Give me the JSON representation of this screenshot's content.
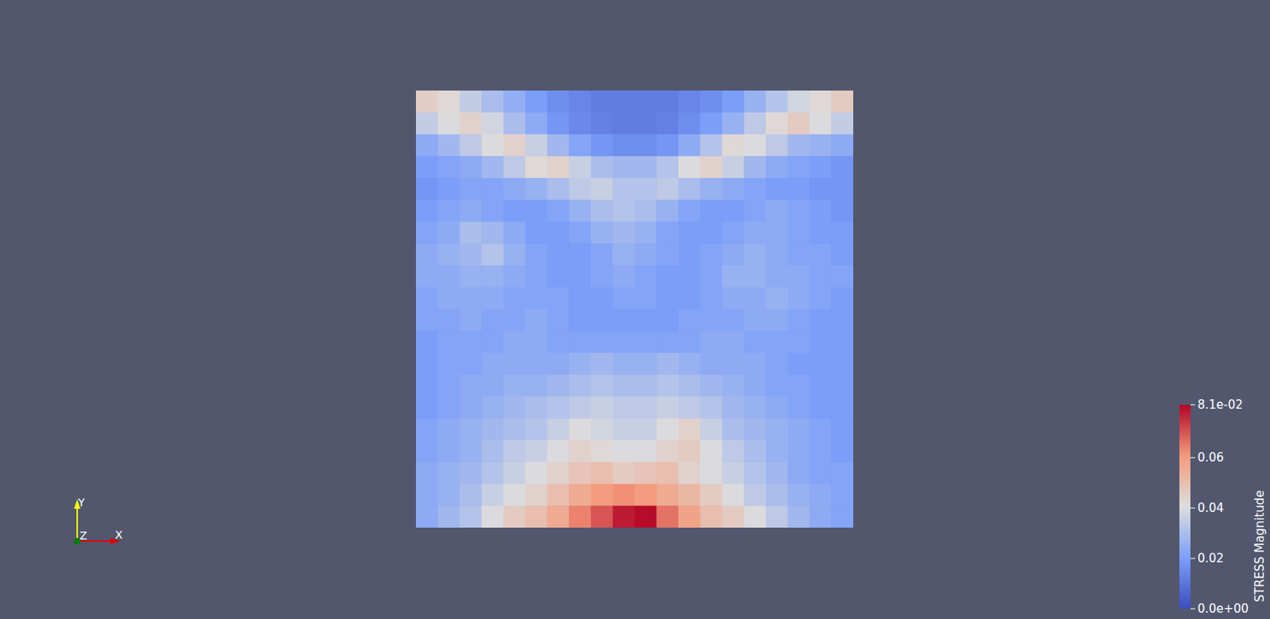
{
  "chart_data": {
    "type": "heatmap",
    "colorbar_title": "STRESS Magnitude",
    "color_range": [
      0,
      0.081
    ],
    "color_ticks": [
      {
        "value": 0,
        "label": "0.0e+00"
      },
      0.02,
      0.04,
      0.06,
      {
        "value": 0.081,
        "label": "8.1e-02"
      }
    ],
    "tick_labels": false,
    "x_label": "X",
    "y_label": "Y",
    "z_label": "Z",
    "cells": [
      [
        0.045,
        0.042,
        0.035,
        0.03,
        0.025,
        0.02,
        0.016,
        0.014,
        0.012,
        0.012,
        0.012,
        0.012,
        0.014,
        0.016,
        0.02,
        0.026,
        0.032,
        0.038,
        0.042,
        0.046
      ],
      [
        0.035,
        0.04,
        0.044,
        0.038,
        0.03,
        0.024,
        0.018,
        0.015,
        0.013,
        0.012,
        0.012,
        0.013,
        0.016,
        0.02,
        0.026,
        0.034,
        0.042,
        0.046,
        0.04,
        0.035
      ],
      [
        0.024,
        0.028,
        0.034,
        0.04,
        0.044,
        0.036,
        0.028,
        0.022,
        0.018,
        0.016,
        0.016,
        0.018,
        0.024,
        0.032,
        0.042,
        0.04,
        0.034,
        0.028,
        0.026,
        0.024
      ],
      [
        0.02,
        0.022,
        0.024,
        0.028,
        0.034,
        0.042,
        0.044,
        0.036,
        0.03,
        0.028,
        0.028,
        0.032,
        0.04,
        0.044,
        0.036,
        0.028,
        0.024,
        0.022,
        0.02,
        0.018
      ],
      [
        0.018,
        0.02,
        0.022,
        0.022,
        0.024,
        0.026,
        0.03,
        0.034,
        0.036,
        0.032,
        0.032,
        0.034,
        0.03,
        0.026,
        0.024,
        0.022,
        0.02,
        0.02,
        0.018,
        0.018
      ],
      [
        0.02,
        0.022,
        0.024,
        0.022,
        0.02,
        0.02,
        0.022,
        0.026,
        0.03,
        0.032,
        0.03,
        0.026,
        0.022,
        0.02,
        0.02,
        0.022,
        0.024,
        0.022,
        0.02,
        0.018
      ],
      [
        0.022,
        0.024,
        0.03,
        0.028,
        0.024,
        0.02,
        0.02,
        0.022,
        0.026,
        0.028,
        0.026,
        0.022,
        0.02,
        0.02,
        0.022,
        0.024,
        0.024,
        0.022,
        0.02,
        0.02
      ],
      [
        0.024,
        0.026,
        0.028,
        0.032,
        0.026,
        0.022,
        0.02,
        0.02,
        0.022,
        0.026,
        0.024,
        0.022,
        0.02,
        0.022,
        0.024,
        0.026,
        0.024,
        0.022,
        0.022,
        0.02
      ],
      [
        0.024,
        0.024,
        0.026,
        0.026,
        0.024,
        0.022,
        0.02,
        0.02,
        0.022,
        0.024,
        0.022,
        0.02,
        0.02,
        0.022,
        0.026,
        0.026,
        0.024,
        0.024,
        0.022,
        0.022
      ],
      [
        0.022,
        0.024,
        0.024,
        0.024,
        0.022,
        0.022,
        0.022,
        0.02,
        0.02,
        0.022,
        0.022,
        0.02,
        0.02,
        0.022,
        0.024,
        0.024,
        0.026,
        0.024,
        0.022,
        0.02
      ],
      [
        0.022,
        0.022,
        0.024,
        0.022,
        0.022,
        0.024,
        0.022,
        0.02,
        0.02,
        0.02,
        0.02,
        0.02,
        0.022,
        0.022,
        0.022,
        0.024,
        0.024,
        0.022,
        0.02,
        0.02
      ],
      [
        0.02,
        0.022,
        0.022,
        0.022,
        0.024,
        0.024,
        0.022,
        0.022,
        0.022,
        0.022,
        0.022,
        0.022,
        0.022,
        0.024,
        0.024,
        0.022,
        0.022,
        0.022,
        0.02,
        0.02
      ],
      [
        0.02,
        0.022,
        0.022,
        0.024,
        0.024,
        0.024,
        0.024,
        0.026,
        0.028,
        0.026,
        0.026,
        0.028,
        0.026,
        0.024,
        0.024,
        0.024,
        0.022,
        0.02,
        0.02,
        0.02
      ],
      [
        0.02,
        0.022,
        0.024,
        0.024,
        0.026,
        0.026,
        0.028,
        0.03,
        0.032,
        0.03,
        0.03,
        0.032,
        0.03,
        0.028,
        0.026,
        0.024,
        0.022,
        0.022,
        0.02,
        0.02
      ],
      [
        0.02,
        0.022,
        0.024,
        0.026,
        0.028,
        0.03,
        0.032,
        0.034,
        0.036,
        0.034,
        0.034,
        0.036,
        0.034,
        0.032,
        0.028,
        0.026,
        0.024,
        0.022,
        0.02,
        0.02
      ],
      [
        0.022,
        0.024,
        0.026,
        0.028,
        0.03,
        0.032,
        0.036,
        0.04,
        0.038,
        0.036,
        0.036,
        0.04,
        0.044,
        0.036,
        0.03,
        0.028,
        0.026,
        0.024,
        0.022,
        0.02
      ],
      [
        0.022,
        0.024,
        0.026,
        0.03,
        0.034,
        0.036,
        0.04,
        0.044,
        0.042,
        0.04,
        0.04,
        0.044,
        0.046,
        0.04,
        0.034,
        0.03,
        0.026,
        0.024,
        0.022,
        0.02
      ],
      [
        0.024,
        0.026,
        0.028,
        0.032,
        0.036,
        0.04,
        0.044,
        0.048,
        0.05,
        0.046,
        0.048,
        0.05,
        0.044,
        0.04,
        0.036,
        0.032,
        0.028,
        0.024,
        0.022,
        0.022
      ],
      [
        0.024,
        0.026,
        0.03,
        0.036,
        0.04,
        0.044,
        0.05,
        0.056,
        0.06,
        0.062,
        0.06,
        0.056,
        0.052,
        0.046,
        0.04,
        0.034,
        0.03,
        0.026,
        0.024,
        0.022
      ],
      [
        0.024,
        0.028,
        0.032,
        0.04,
        0.046,
        0.05,
        0.056,
        0.064,
        0.07,
        0.078,
        0.08,
        0.066,
        0.058,
        0.05,
        0.046,
        0.04,
        0.034,
        0.028,
        0.024,
        0.022
      ]
    ]
  }
}
